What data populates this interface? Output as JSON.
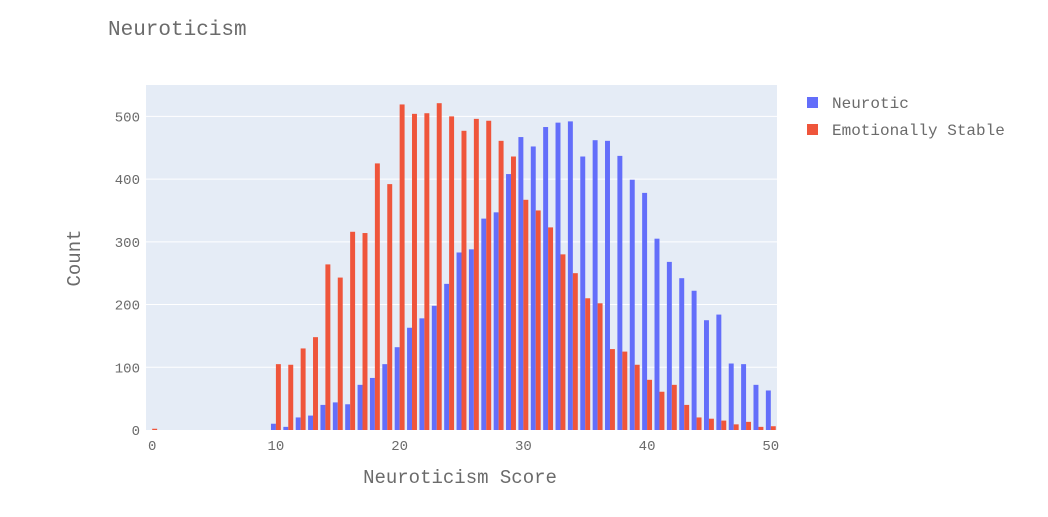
{
  "chart_data": {
    "type": "bar",
    "title": "Neuroticism",
    "xlabel": "Neuroticism Score",
    "ylabel": "Count",
    "xlim": [
      -0.5,
      50.5
    ],
    "ylim": [
      0,
      550
    ],
    "x_ticks": [
      0,
      10,
      20,
      30,
      40,
      50
    ],
    "y_ticks": [
      0,
      100,
      200,
      300,
      400,
      500
    ],
    "grid": true,
    "legend_position": "top-right",
    "plot_background": "#e5ecf6",
    "x": [
      0,
      1,
      2,
      3,
      4,
      5,
      6,
      7,
      8,
      9,
      10,
      11,
      12,
      13,
      14,
      15,
      16,
      17,
      18,
      19,
      20,
      21,
      22,
      23,
      24,
      25,
      26,
      27,
      28,
      29,
      30,
      31,
      32,
      33,
      34,
      35,
      36,
      37,
      38,
      39,
      40,
      41,
      42,
      43,
      44,
      45,
      46,
      47,
      48,
      49,
      50
    ],
    "series": [
      {
        "name": "Neurotic",
        "color": "#636efa",
        "values": [
          0,
          0,
          0,
          0,
          0,
          0,
          0,
          0,
          0,
          0,
          10,
          5,
          20,
          23,
          40,
          44,
          41,
          72,
          83,
          105,
          132,
          163,
          178,
          198,
          233,
          283,
          288,
          337,
          347,
          408,
          467,
          452,
          483,
          490,
          492,
          436,
          462,
          461,
          437,
          399,
          378,
          305,
          268,
          242,
          222,
          175,
          184,
          106,
          105,
          72,
          63
        ]
      },
      {
        "name": "Emotionally Stable",
        "color": "#ef553b",
        "values": [
          2,
          0,
          0,
          0,
          0,
          0,
          0,
          0,
          0,
          0,
          105,
          104,
          130,
          148,
          264,
          243,
          316,
          314,
          425,
          392,
          519,
          504,
          505,
          521,
          500,
          477,
          496,
          493,
          461,
          436,
          367,
          350,
          323,
          280,
          250,
          210,
          202,
          129,
          125,
          104,
          80,
          61,
          72,
          40,
          20,
          18,
          15,
          9,
          13,
          5,
          6
        ]
      }
    ]
  }
}
